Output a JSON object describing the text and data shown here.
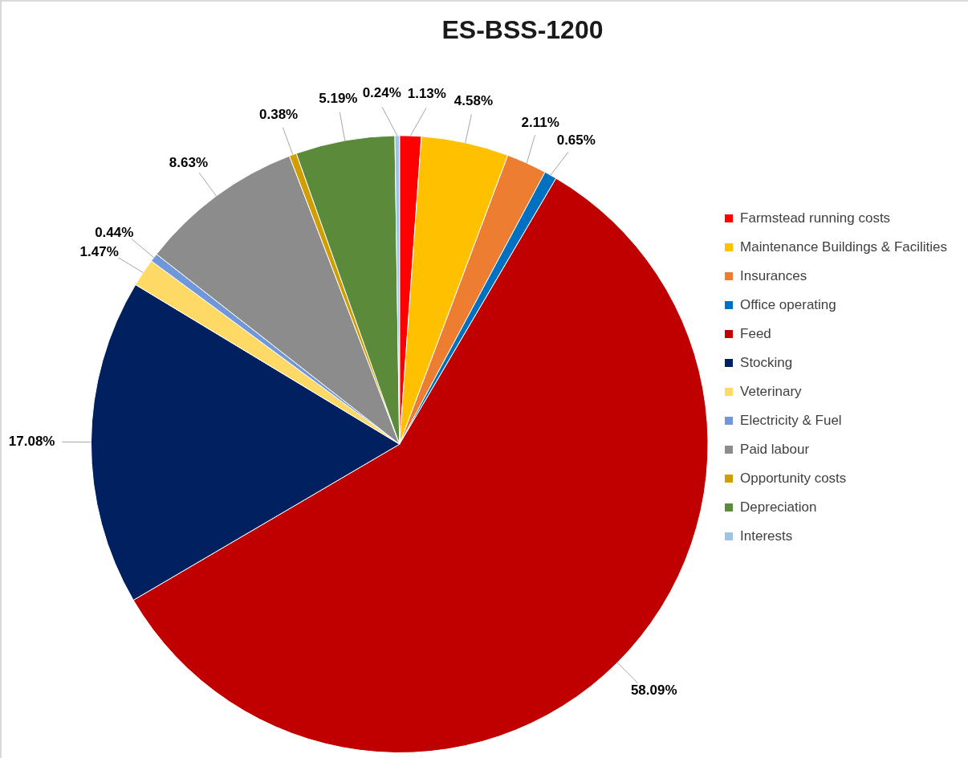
{
  "chart_data": {
    "type": "pie",
    "title": "ES-BSS-1200",
    "categories": [
      "Farmstead running costs",
      "Maintenance Buildings & Facilities",
      "Insurances",
      "Office operating",
      "Feed",
      "Stocking",
      "Veterinary",
      "Electricity & Fuel",
      "Paid labour",
      "Opportunity costs",
      "Depreciation",
      "Interests"
    ],
    "values": [
      1.13,
      4.58,
      2.11,
      0.65,
      58.09,
      17.08,
      1.47,
      0.44,
      8.63,
      0.38,
      5.19,
      0.24
    ],
    "colors": [
      "#ff0000",
      "#ffc000",
      "#ed7d31",
      "#0070c0",
      "#c00000",
      "#002060",
      "#ffd966",
      "#6f97d9",
      "#8c8c8c",
      "#d09e00",
      "#5a8a3a",
      "#9dc3e6"
    ],
    "value_labels": [
      "1.13%",
      "4.58%",
      "2.11%",
      "0.65%",
      "58.09%",
      "17.08%",
      "1.47%",
      "0.44%",
      "8.63%",
      "0.38%",
      "5.19%",
      "0.24%"
    ],
    "legend": "right"
  }
}
